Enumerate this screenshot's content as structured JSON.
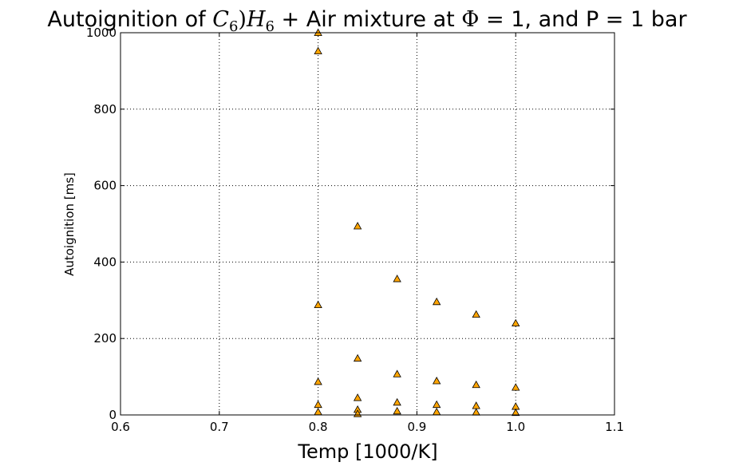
{
  "chart_data": {
    "type": "scatter",
    "title": "Autoignition of $C_6)H_6$ + Air mixture at $\\Phi$ = 1, and P = 1 bar",
    "title_parts": {
      "prefix": "Autoignition of ",
      "c": "C",
      "c_sub": "6",
      "paren": ")",
      "h": "H",
      "h_sub": "6",
      "middle": " + Air mixture at ",
      "phi": "Φ",
      "suffix": " = 1, and P = 1 bar"
    },
    "xlabel": "Temp [1000/K]",
    "ylabel": "Autoignition [ms]",
    "xlim": [
      0.6,
      1.1
    ],
    "ylim": [
      0,
      1000
    ],
    "x_ticks": [
      "0.6",
      "0.7",
      "0.8",
      "0.9",
      "1.0",
      "1.1"
    ],
    "y_ticks": [
      "0",
      "200",
      "400",
      "600",
      "800",
      "1000"
    ],
    "grid": true,
    "marker": "triangle",
    "marker_color": "#ffa500",
    "points": [
      {
        "x": 0.8,
        "y": 1000
      },
      {
        "x": 0.8,
        "y": 952
      },
      {
        "x": 0.8,
        "y": 288
      },
      {
        "x": 0.8,
        "y": 87
      },
      {
        "x": 0.8,
        "y": 27
      },
      {
        "x": 0.8,
        "y": 8
      },
      {
        "x": 0.84,
        "y": 494
      },
      {
        "x": 0.84,
        "y": 148
      },
      {
        "x": 0.84,
        "y": 45
      },
      {
        "x": 0.84,
        "y": 14
      },
      {
        "x": 0.84,
        "y": 3
      },
      {
        "x": 0.88,
        "y": 356
      },
      {
        "x": 0.88,
        "y": 107
      },
      {
        "x": 0.88,
        "y": 33
      },
      {
        "x": 0.88,
        "y": 10
      },
      {
        "x": 0.92,
        "y": 296
      },
      {
        "x": 0.92,
        "y": 89
      },
      {
        "x": 0.92,
        "y": 27
      },
      {
        "x": 0.92,
        "y": 8
      },
      {
        "x": 0.96,
        "y": 263
      },
      {
        "x": 0.96,
        "y": 79
      },
      {
        "x": 0.96,
        "y": 24
      },
      {
        "x": 0.96,
        "y": 7
      },
      {
        "x": 1.0,
        "y": 240
      },
      {
        "x": 1.0,
        "y": 72
      },
      {
        "x": 1.0,
        "y": 22
      },
      {
        "x": 1.0,
        "y": 6
      }
    ]
  }
}
